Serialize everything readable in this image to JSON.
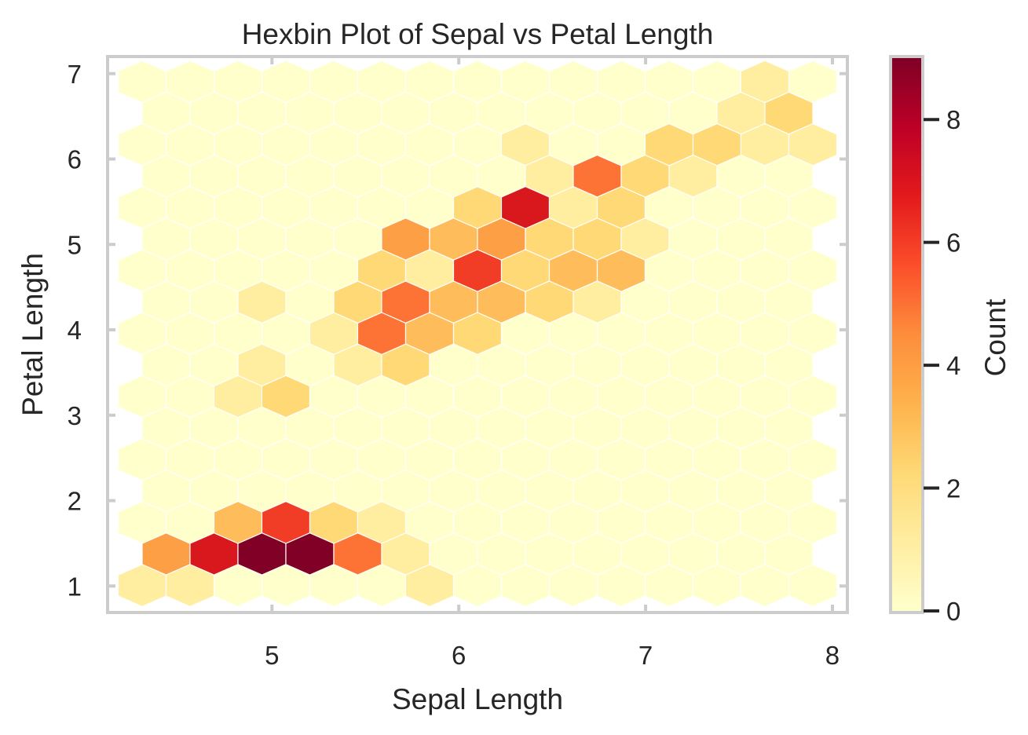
{
  "chart_data": {
    "type": "heatmap",
    "subtype": "hexbin",
    "title": "Hexbin Plot of Sepal vs Petal Length",
    "xlabel": "Sepal Length",
    "ylabel": "Petal Length",
    "xlim": [
      4.12,
      8.08
    ],
    "ylim": [
      0.69,
      7.2
    ],
    "x_ticks": [
      5,
      6,
      7,
      8
    ],
    "y_ticks": [
      1,
      2,
      3,
      4,
      5,
      6,
      7
    ],
    "grid": false,
    "colormap": "YlOrRd",
    "colorbar": {
      "label": "Count",
      "min": 0,
      "max": 9,
      "ticks": [
        0,
        2,
        4,
        6,
        8
      ]
    },
    "gridsize_description": "15 columns (even rows) x 17 rows, hexes with count 0 drawn in lightest color",
    "hex_rows": [
      {
        "row": 0,
        "petal_center": 7.0,
        "offset": false,
        "counts": [
          0,
          0,
          0,
          0,
          0,
          0,
          0,
          0,
          0,
          0,
          0,
          0,
          0,
          1,
          0
        ]
      },
      {
        "row": 1,
        "petal_center": 6.63,
        "offset": true,
        "counts": [
          0,
          0,
          0,
          0,
          0,
          0,
          0,
          0,
          0,
          0,
          0,
          0,
          1,
          2
        ]
      },
      {
        "row": 2,
        "petal_center": 6.26,
        "offset": false,
        "counts": [
          0,
          0,
          0,
          0,
          0,
          0,
          0,
          0,
          1,
          0,
          0,
          2,
          2,
          1,
          1
        ]
      },
      {
        "row": 3,
        "petal_center": 5.89,
        "offset": true,
        "counts": [
          0,
          0,
          0,
          0,
          0,
          0,
          0,
          0,
          1,
          5,
          2,
          1,
          0,
          0
        ]
      },
      {
        "row": 4,
        "petal_center": 5.52,
        "offset": false,
        "counts": [
          0,
          0,
          0,
          0,
          0,
          0,
          0,
          2,
          7,
          1,
          2,
          0,
          0,
          0,
          0
        ]
      },
      {
        "row": 5,
        "petal_center": 5.15,
        "offset": true,
        "counts": [
          0,
          0,
          0,
          0,
          0,
          4,
          3,
          4,
          2,
          2,
          1,
          0,
          0,
          0
        ]
      },
      {
        "row": 6,
        "petal_center": 4.78,
        "offset": false,
        "counts": [
          0,
          0,
          0,
          0,
          0,
          2,
          1,
          6,
          2,
          3,
          3,
          0,
          0,
          0,
          0
        ]
      },
      {
        "row": 7,
        "petal_center": 4.41,
        "offset": true,
        "counts": [
          0,
          0,
          1,
          0,
          2,
          5,
          3,
          3,
          2,
          1,
          0,
          0,
          0,
          0
        ]
      },
      {
        "row": 8,
        "petal_center": 4.04,
        "offset": false,
        "counts": [
          0,
          0,
          0,
          0,
          1,
          5,
          3,
          2,
          0,
          0,
          0,
          0,
          0,
          0,
          0
        ]
      },
      {
        "row": 9,
        "petal_center": 3.67,
        "offset": true,
        "counts": [
          0,
          0,
          1,
          0,
          1,
          2,
          0,
          0,
          0,
          0,
          0,
          0,
          0,
          0
        ]
      },
      {
        "row": 10,
        "petal_center": 3.3,
        "offset": false,
        "counts": [
          0,
          0,
          1,
          2,
          0,
          0,
          0,
          0,
          0,
          0,
          0,
          0,
          0,
          0,
          0
        ]
      },
      {
        "row": 11,
        "petal_center": 2.93,
        "offset": true,
        "counts": [
          0,
          0,
          0,
          0,
          0,
          0,
          0,
          0,
          0,
          0,
          0,
          0,
          0,
          0
        ]
      },
      {
        "row": 12,
        "petal_center": 2.56,
        "offset": false,
        "counts": [
          0,
          0,
          0,
          0,
          0,
          0,
          0,
          0,
          0,
          0,
          0,
          0,
          0,
          0,
          0
        ]
      },
      {
        "row": 13,
        "petal_center": 2.19,
        "offset": true,
        "counts": [
          0,
          0,
          0,
          0,
          0,
          0,
          0,
          0,
          0,
          0,
          0,
          0,
          0,
          0
        ]
      },
      {
        "row": 14,
        "petal_center": 1.82,
        "offset": false,
        "counts": [
          0,
          0,
          3,
          6,
          2,
          1,
          0,
          0,
          0,
          0,
          0,
          0,
          0,
          0,
          0
        ]
      },
      {
        "row": 15,
        "petal_center": 1.45,
        "offset": true,
        "counts": [
          4,
          7,
          9,
          9,
          5,
          1,
          0,
          0,
          0,
          0,
          0,
          0,
          0,
          0
        ]
      },
      {
        "row": 16,
        "petal_center": 1.08,
        "offset": false,
        "counts": [
          1,
          1,
          0,
          0,
          0,
          0,
          1,
          0,
          0,
          0,
          0,
          0,
          0,
          0,
          0
        ]
      }
    ],
    "color_scale": {
      "0": "#ffffcc",
      "1": "#ffeda0",
      "2": "#fed976",
      "3": "#febd5a",
      "4": "#fd9f44",
      "5": "#fc7335",
      "6": "#f23d26",
      "7": "#d9181e",
      "8": "#b30026",
      "9": "#800026"
    }
  }
}
